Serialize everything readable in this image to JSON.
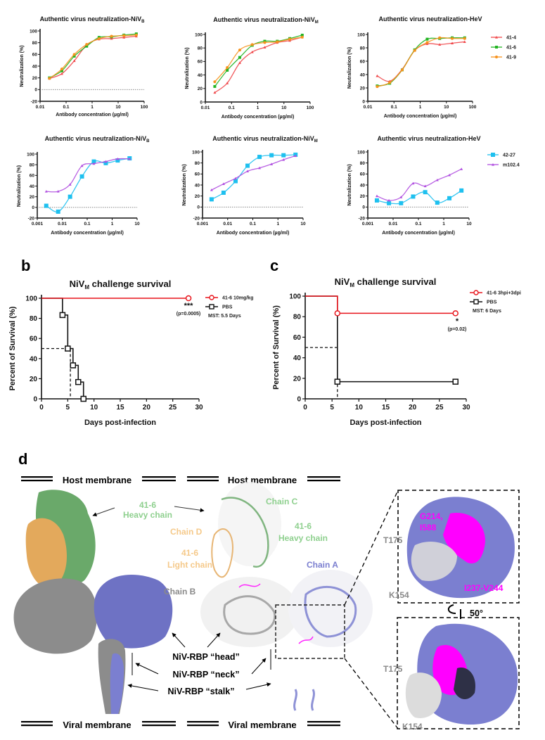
{
  "panel_labels": {
    "b": "b",
    "c": "c",
    "d": "d"
  },
  "neutralization_titles": [
    {
      "main": "Authentic virus neutralization-NiV",
      "sub": "B"
    },
    {
      "main": "Authentic virus neutralization-NiV",
      "sub": "M"
    },
    {
      "main": "Authentic virus neutralization-HeV",
      "sub": ""
    },
    {
      "main": "Authentic virus neutralization-NiV",
      "sub": "B"
    },
    {
      "main": "Authentic virus neutralization-NiV",
      "sub": "M"
    },
    {
      "main": "Authentic virus neutralization-HeV",
      "sub": ""
    }
  ],
  "survival_titles": [
    {
      "pre": "NiV",
      "sub": "M",
      "post": " challenge survival"
    },
    {
      "pre": "NiV",
      "sub": "M",
      "post": " challenge survival"
    }
  ],
  "chart_data": [
    {
      "type": "line",
      "scale": "log-x",
      "xlabel": "Antibody concentration (µg/ml)",
      "ylabel": "Neutralization (%)",
      "xlim": [
        0.01,
        100
      ],
      "ylim": [
        -20,
        100
      ],
      "xticks": [
        "0.01",
        "0.1",
        "1",
        "10",
        "100"
      ],
      "yticks": [
        -20,
        0,
        20,
        40,
        60,
        80,
        100
      ],
      "zero_line": true,
      "x": [
        0.0229,
        0.0686,
        0.206,
        0.617,
        1.85,
        5.56,
        16.7,
        50
      ],
      "series": [
        {
          "name": "41-4",
          "color": "#f0474a",
          "marker": "triangle",
          "values": [
            19,
            27,
            49,
            76,
            86,
            87,
            89,
            91
          ]
        },
        {
          "name": "41-6",
          "color": "#22b422",
          "marker": "square",
          "values": [
            20,
            32,
            57,
            74,
            89,
            90,
            93,
            95
          ]
        },
        {
          "name": "41-9",
          "color": "#f7931e",
          "marker": "circle",
          "values": [
            19,
            35,
            60,
            77,
            87,
            91,
            92,
            93
          ]
        }
      ],
      "legend": "none"
    },
    {
      "type": "line",
      "scale": "log-x",
      "xlabel": "Antibody concentration (µg/ml)",
      "ylabel": "Neutralization (%)",
      "xlim": [
        0.01,
        100
      ],
      "ylim": [
        0,
        100
      ],
      "xticks": [
        "0.01",
        "0.1",
        "1",
        "10",
        "100"
      ],
      "yticks": [
        0,
        20,
        40,
        60,
        80,
        100
      ],
      "zero_line": false,
      "x": [
        0.0229,
        0.0686,
        0.206,
        0.617,
        1.85,
        5.56,
        16.7,
        50
      ],
      "series": [
        {
          "name": "41-4",
          "color": "#f0474a",
          "marker": "triangle",
          "values": [
            14,
            28,
            58,
            74,
            81,
            88,
            91,
            96
          ]
        },
        {
          "name": "41-6",
          "color": "#22b422",
          "marker": "square",
          "values": [
            23,
            47,
            66,
            84,
            90,
            90,
            94,
            99
          ]
        },
        {
          "name": "41-9",
          "color": "#f7931e",
          "marker": "circle",
          "values": [
            30,
            51,
            77,
            85,
            88,
            89,
            93,
            96
          ]
        }
      ],
      "legend": "none"
    },
    {
      "type": "line",
      "scale": "log-x",
      "xlabel": "Antibody concentration (µg/ml)",
      "ylabel": "",
      "xlim": [
        0.01,
        100
      ],
      "ylim": [
        0,
        100
      ],
      "xticks": [
        "0.01",
        "0.1",
        "1",
        "10",
        "100"
      ],
      "yticks": [
        0,
        20,
        40,
        60,
        80,
        100
      ],
      "zero_line": false,
      "x": [
        0.0229,
        0.0686,
        0.206,
        0.617,
        1.85,
        5.56,
        16.7,
        50
      ],
      "series": [
        {
          "name": "41-4",
          "color": "#f0474a",
          "marker": "triangle",
          "values": [
            38,
            30,
            48,
            76,
            86,
            85,
            87,
            89
          ]
        },
        {
          "name": "41-6",
          "color": "#22b422",
          "marker": "square",
          "values": [
            23,
            27,
            47,
            77,
            93,
            94,
            95,
            95
          ]
        },
        {
          "name": "41-9",
          "color": "#f7931e",
          "marker": "circle",
          "values": [
            22,
            28,
            47,
            76,
            88,
            95,
            94,
            94
          ]
        }
      ],
      "legend": "right"
    },
    {
      "type": "line",
      "scale": "log-x",
      "xlabel": "Antibody concentration (µg/ml)",
      "ylabel": "Neutralization (%)",
      "xlim": [
        0.001,
        10
      ],
      "ylim": [
        -20,
        100
      ],
      "xticks": [
        "0.001",
        "0.01",
        "0.1",
        "1",
        "10"
      ],
      "yticks": [
        -20,
        0,
        20,
        40,
        60,
        80,
        100
      ],
      "zero_line": true,
      "x": [
        0.00229,
        0.00686,
        0.0206,
        0.0617,
        0.185,
        0.556,
        1.67,
        5
      ],
      "series": [
        {
          "name": "42-27",
          "color": "#1ec0ef",
          "marker": "bigsquare",
          "values": [
            3,
            -8,
            20,
            58,
            86,
            83,
            88,
            92
          ]
        },
        {
          "name": "m102.4",
          "color": "#b04fe0",
          "marker": "triangle",
          "values": [
            30,
            30,
            43,
            78,
            82,
            86,
            91,
            91
          ]
        }
      ],
      "legend": "none"
    },
    {
      "type": "line",
      "scale": "log-x",
      "xlabel": "Antibody concentration (µg/ml)",
      "ylabel": "Neutralization (%)",
      "xlim": [
        0.001,
        10
      ],
      "ylim": [
        -20,
        100
      ],
      "xticks": [
        "0.001",
        "0.01",
        "0.1",
        "1",
        "10"
      ],
      "yticks": [
        -20,
        0,
        20,
        40,
        60,
        80,
        100
      ],
      "zero_line": true,
      "x": [
        0.00229,
        0.00686,
        0.0206,
        0.0617,
        0.185,
        0.556,
        1.67,
        5
      ],
      "series": [
        {
          "name": "42-27",
          "color": "#1ec0ef",
          "marker": "bigsquare",
          "values": [
            14,
            26,
            47,
            75,
            91,
            94,
            94,
            95
          ]
        },
        {
          "name": "m102.4",
          "color": "#b04fe0",
          "marker": "triangle",
          "values": [
            31,
            42,
            52,
            65,
            71,
            78,
            86,
            93
          ]
        }
      ],
      "legend": "none"
    },
    {
      "type": "line",
      "scale": "log-x",
      "xlabel": "Antibody concentration (µg/ml)",
      "ylabel": "",
      "xlim": [
        0.001,
        10
      ],
      "ylim": [
        -20,
        100
      ],
      "xticks": [
        "0.001",
        "0.01",
        "0.1",
        "1",
        "10"
      ],
      "yticks": [
        -20,
        0,
        20,
        40,
        60,
        80,
        100
      ],
      "zero_line": true,
      "x": [
        0.00229,
        0.00686,
        0.0206,
        0.0617,
        0.185,
        0.556,
        1.67,
        5
      ],
      "series": [
        {
          "name": "42-27",
          "color": "#1ec0ef",
          "marker": "bigsquare",
          "values": [
            12,
            7,
            7,
            19,
            27,
            8,
            16,
            30
          ]
        },
        {
          "name": "m102.4",
          "color": "#b04fe0",
          "marker": "triangle",
          "values": [
            20,
            12,
            18,
            43,
            38,
            49,
            58,
            69
          ]
        }
      ],
      "legend": "right"
    },
    {
      "type": "line",
      "subtype": "survival",
      "xlabel": "Days post-infection",
      "ylabel": "Percent of Survival (%)",
      "xlim": [
        0,
        30
      ],
      "ylim": [
        0,
        100
      ],
      "xticks": [
        0,
        5,
        10,
        15,
        20,
        25,
        30
      ],
      "yticks": [
        0,
        20,
        40,
        60,
        80,
        100
      ],
      "median": 5.5,
      "series": [
        {
          "name": "41-6 10mg/kg",
          "color": "#e8141b",
          "marker": "circle",
          "steps": [
            [
              0,
              100
            ],
            [
              28,
              100
            ]
          ],
          "points": [
            [
              28,
              100
            ]
          ]
        },
        {
          "name": "PBS",
          "color": "#111111",
          "marker": "square",
          "steps": [
            [
              0,
              100
            ],
            [
              4,
              83.3
            ],
            [
              5,
              50
            ],
            [
              6,
              33.3
            ],
            [
              7,
              16.7
            ],
            [
              8,
              0
            ]
          ],
          "points": [
            [
              4,
              83.3
            ],
            [
              5,
              50
            ],
            [
              6,
              33.3
            ],
            [
              7,
              16.7
            ],
            [
              8,
              0
            ]
          ]
        }
      ],
      "annotations": {
        "stars": "***",
        "p": "(p=0.0005)",
        "mst": "MST: 5.5 Days"
      },
      "legend": "top-right"
    },
    {
      "type": "line",
      "subtype": "survival",
      "xlabel": "Days post-infection",
      "ylabel": "Percent of Survival (%)",
      "xlim": [
        0,
        30
      ],
      "ylim": [
        0,
        100
      ],
      "xticks": [
        0,
        5,
        10,
        15,
        20,
        25,
        30
      ],
      "yticks": [
        0,
        20,
        40,
        60,
        80,
        100
      ],
      "median": 6,
      "series": [
        {
          "name": "41-6 3hpi+3dpi",
          "color": "#e8141b",
          "marker": "circle",
          "steps": [
            [
              0,
              100
            ],
            [
              6,
              83.3
            ],
            [
              28,
              83.3
            ]
          ],
          "points": [
            [
              6,
              83.3
            ],
            [
              28,
              83.3
            ]
          ]
        },
        {
          "name": "PBS",
          "color": "#111111",
          "marker": "square",
          "steps": [
            [
              0,
              100
            ],
            [
              6,
              16.7
            ],
            [
              28,
              16.7
            ]
          ],
          "points": [
            [
              6,
              16.7
            ],
            [
              28,
              16.7
            ]
          ]
        }
      ],
      "annotations": {
        "stars": "*",
        "p": "(p=0.02)",
        "mst": "MST: 6 Days"
      },
      "legend": "top-right"
    }
  ],
  "structure": {
    "host_membrane": "Host membrane",
    "viral_membrane": "Viral membrane",
    "heavy_chain_left": [
      "41-6",
      "Heavy chain"
    ],
    "chain_c": "Chain C",
    "chain_d": "Chain D",
    "heavy_chain_right": [
      "41-6",
      "Heavy chain"
    ],
    "light_chain": [
      "41-6",
      "Light chain"
    ],
    "chain_a": "Chain A",
    "chain_b": "Chain B",
    "head": "NiV-RBP “head”",
    "neck": "NiV-RBP “neck”",
    "stalk": "NiV-RBP “stalk”",
    "residues_top": [
      "G214,",
      "I588"
    ],
    "t175": "T175",
    "k154": "K154",
    "range": "I237-V244",
    "rotation": "50°",
    "colors": {
      "heavy": "#6aa96a",
      "light": "#e9b36f",
      "chain_a": "#7b7fd0",
      "chain_b": "#9a9a9a",
      "epitope": "#ff00ff"
    }
  }
}
